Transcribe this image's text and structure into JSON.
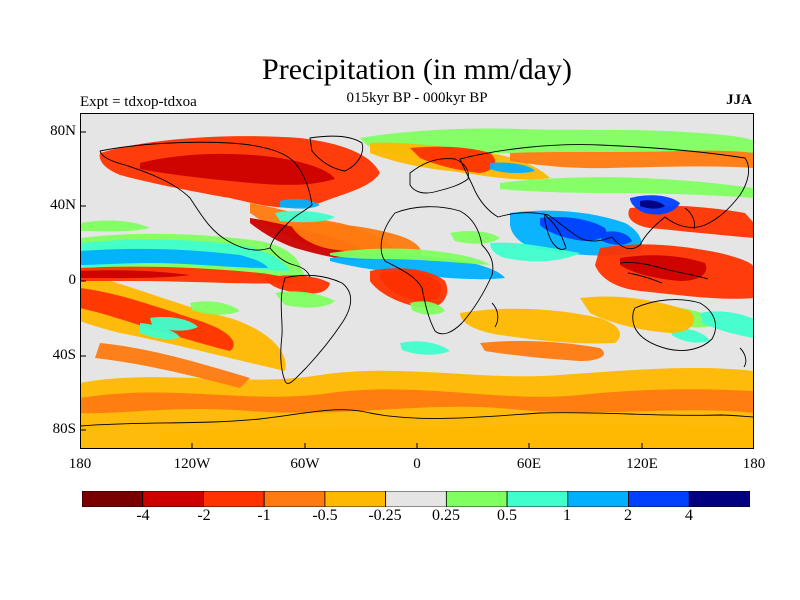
{
  "title": "Precipitation (in mm/day)",
  "subtitle": "015kyr BP - 000kyr BP",
  "experiment_label": "Expt = tdxop-tdxoa",
  "season": "JJA",
  "map": {
    "projection": "cylindrical-equidistant",
    "missing_value_color": "#e5e5e5",
    "lon_ticks": [
      "180",
      "120W",
      "60W",
      "0",
      "60E",
      "120E",
      "180"
    ],
    "lat_ticks": [
      "80N",
      "40N",
      "0",
      "40S",
      "80S"
    ]
  },
  "colorbar": {
    "colors": [
      "#7a0000",
      "#cc0000",
      "#ff3300",
      "#ff7a10",
      "#ffb800",
      "#e5e5e5",
      "#80ff60",
      "#40ffcc",
      "#00b0ff",
      "#0040ff",
      "#000080"
    ],
    "labels": [
      "-4",
      "-2",
      "-1",
      "-0.5",
      "-0.25",
      "0.25",
      "0.5",
      "1",
      "2",
      "4"
    ]
  }
}
